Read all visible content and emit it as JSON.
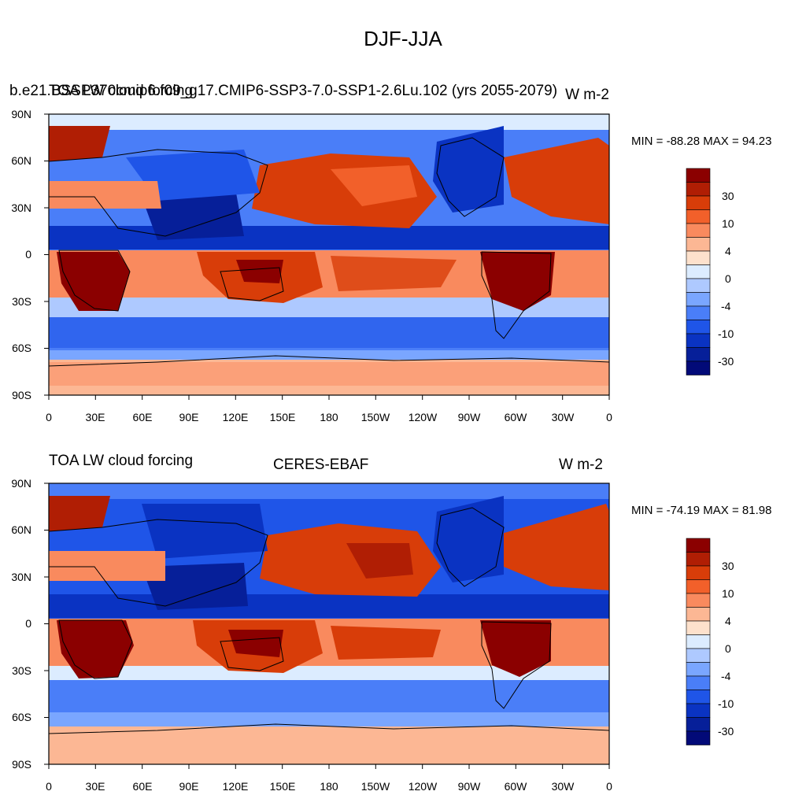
{
  "main_title": "DJF-JJA",
  "panels": [
    {
      "left_title": "b.e21.BSSP370cmip6.f09_g17.CMIP6-SSP3-7.0-SSP1-2.6Lu.102 (yrs 2055-2079)",
      "center_title": "TOA LW cloud forcing",
      "right_title": "W m-2",
      "minmax": "MIN = -88.28 MAX =  94.23",
      "lat_labels": [
        "90N",
        "60N",
        "30N",
        "0",
        "30S",
        "60S",
        "90S"
      ],
      "lon_labels": [
        "0",
        "30E",
        "60E",
        "90E",
        "120E",
        "150E",
        "180",
        "150W",
        "120W",
        "90W",
        "60W",
        "30W",
        "0"
      ]
    },
    {
      "left_title": "TOA LW cloud forcing",
      "center_title": "CERES-EBAF",
      "right_title": "W m-2",
      "minmax": "MIN = -74.19 MAX =  81.98",
      "lat_labels": [
        "90N",
        "60N",
        "30N",
        "0",
        "30S",
        "60S",
        "90S"
      ],
      "lon_labels": [
        "0",
        "30E",
        "60E",
        "90E",
        "120E",
        "150E",
        "180",
        "150W",
        "120W",
        "90W",
        "60W",
        "30W",
        "0"
      ]
    }
  ],
  "colorbar": {
    "labels": [
      "30",
      "10",
      "4",
      "0",
      "-4",
      "-10",
      "-30"
    ],
    "colors": [
      "#8b0000",
      "#b01e04",
      "#d83d09",
      "#f2602a",
      "#f98a5e",
      "#fcb794",
      "#fde1cc",
      "#dcecff",
      "#aec9ff",
      "#7aa6ff",
      "#4a7ef8",
      "#1f55e8",
      "#0a33c2",
      "#061f99",
      "#020a78"
    ]
  },
  "colors": {
    "strong_positive": "#b01e04",
    "positive": "#f2602a",
    "weak_positive": "#fcb794",
    "near_zero": "#dcecff",
    "weak_negative": "#7aa6ff",
    "negative": "#1f55e8",
    "strong_negative": "#061f99"
  }
}
